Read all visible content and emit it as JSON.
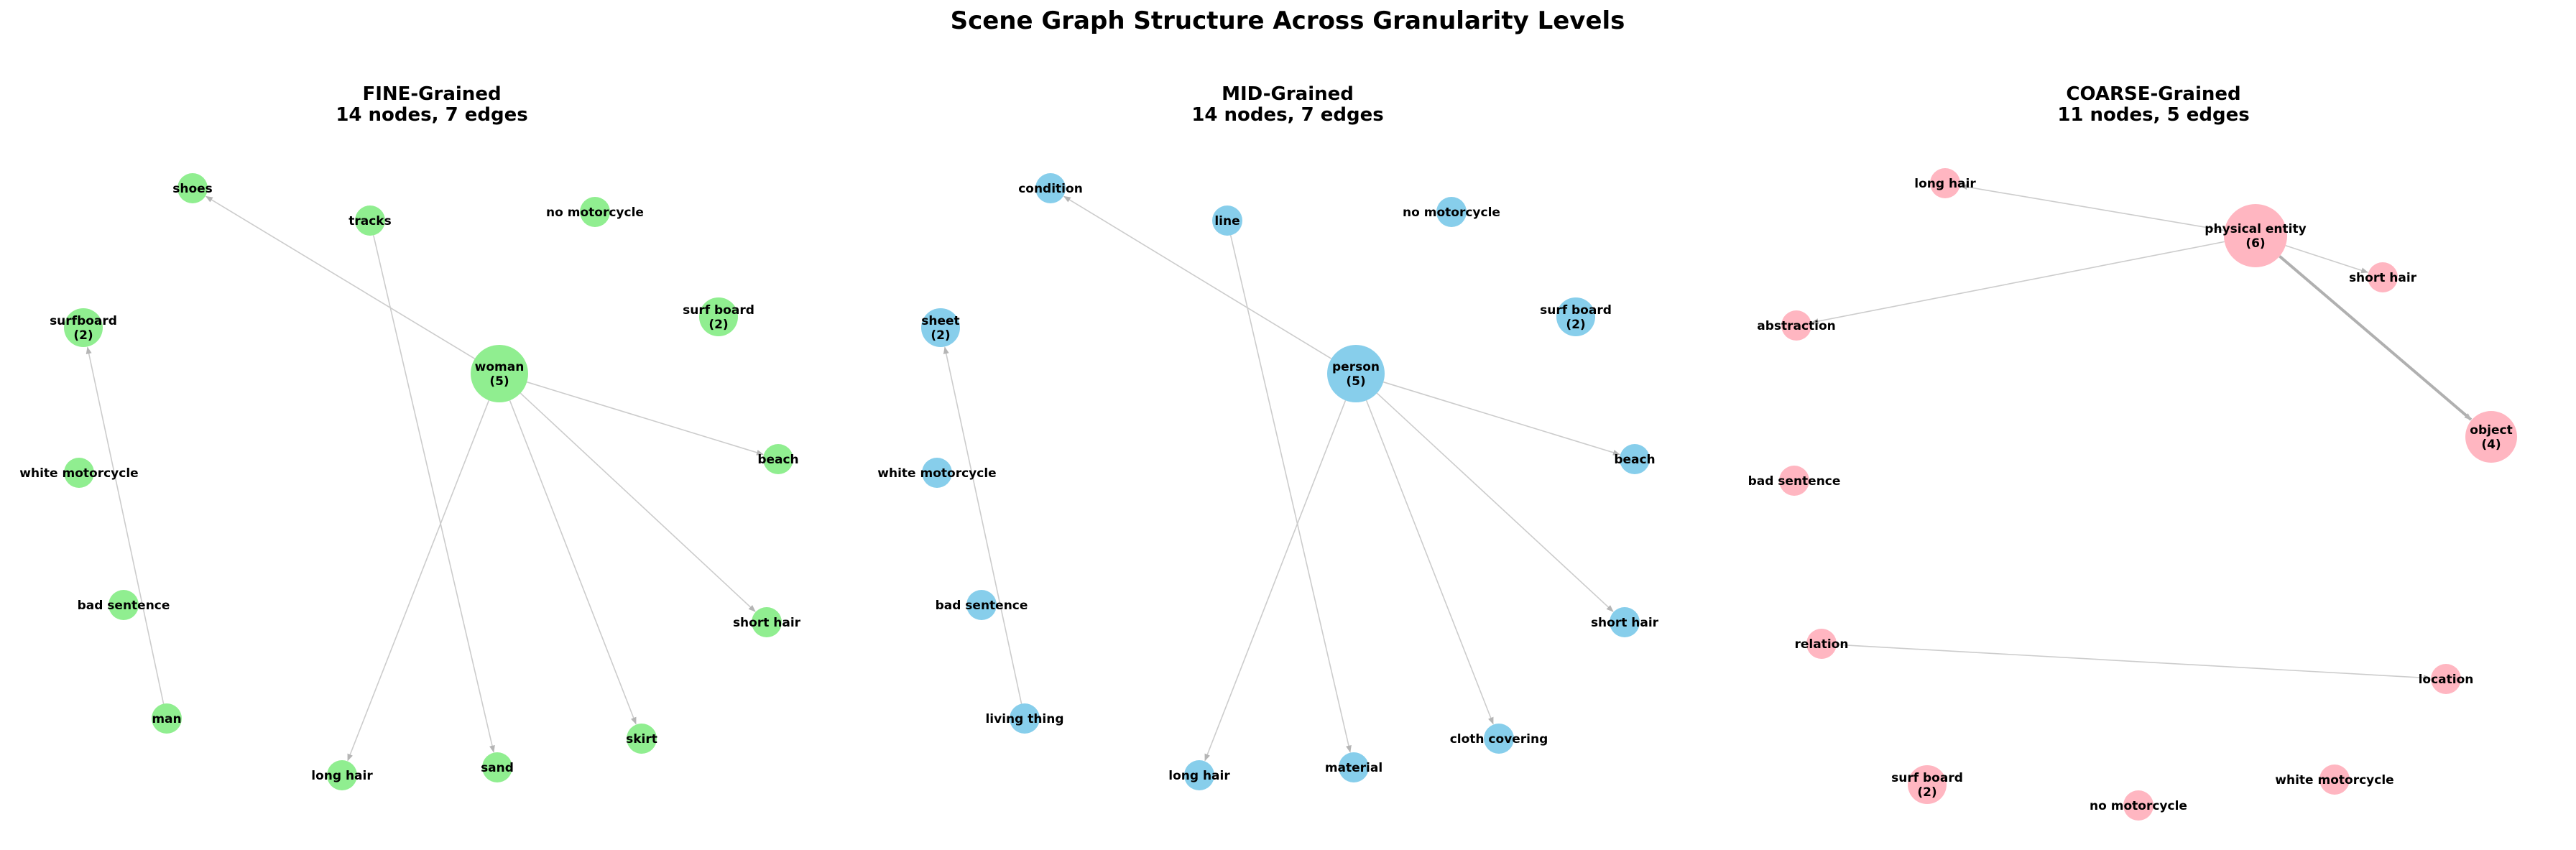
{
  "figure": {
    "title": "Scene Graph Structure Across Granularity Levels"
  },
  "panels": [
    {
      "id": "fine",
      "title_line1": "FINE-Grained",
      "title_line2": "14 nodes, 7 edges",
      "node_color": "#90ee90",
      "nodes": [
        {
          "id": "woman",
          "label": "woman",
          "count": "(5)"
        },
        {
          "id": "shoes",
          "label": "shoes"
        },
        {
          "id": "tracks",
          "label": "tracks"
        },
        {
          "id": "no_motorcycle",
          "label": "no motorcycle"
        },
        {
          "id": "surfboard",
          "label": "surfboard",
          "count": "(2)"
        },
        {
          "id": "surf_board",
          "label": "surf board",
          "count": "(2)"
        },
        {
          "id": "white_motorcycle",
          "label": "white motorcycle"
        },
        {
          "id": "beach",
          "label": "beach"
        },
        {
          "id": "bad_sentence",
          "label": "bad sentence"
        },
        {
          "id": "short_hair",
          "label": "short hair"
        },
        {
          "id": "man",
          "label": "man"
        },
        {
          "id": "skirt",
          "label": "skirt"
        },
        {
          "id": "long_hair",
          "label": "long hair"
        },
        {
          "id": "sand",
          "label": "sand"
        }
      ],
      "edges": [
        [
          "woman",
          "shoes"
        ],
        [
          "woman",
          "beach"
        ],
        [
          "woman",
          "short_hair"
        ],
        [
          "woman",
          "skirt"
        ],
        [
          "woman",
          "long_hair"
        ],
        [
          "tracks",
          "sand"
        ],
        [
          "man",
          "surfboard"
        ]
      ]
    },
    {
      "id": "mid",
      "title_line1": "MID-Grained",
      "title_line2": "14 nodes, 7 edges",
      "node_color": "#87ceeb",
      "nodes": [
        {
          "id": "person",
          "label": "person",
          "count": "(5)"
        },
        {
          "id": "condition",
          "label": "condition"
        },
        {
          "id": "line",
          "label": "line"
        },
        {
          "id": "no_motorcycle",
          "label": "no motorcycle"
        },
        {
          "id": "sheet",
          "label": "sheet",
          "count": "(2)"
        },
        {
          "id": "surf_board",
          "label": "surf board",
          "count": "(2)"
        },
        {
          "id": "white_motorcycle",
          "label": "white motorcycle"
        },
        {
          "id": "beach",
          "label": "beach"
        },
        {
          "id": "bad_sentence",
          "label": "bad sentence"
        },
        {
          "id": "short_hair",
          "label": "short hair"
        },
        {
          "id": "living_thing",
          "label": "living thing"
        },
        {
          "id": "cloth_covering",
          "label": "cloth covering"
        },
        {
          "id": "long_hair",
          "label": "long hair"
        },
        {
          "id": "material",
          "label": "material"
        }
      ],
      "edges": [
        [
          "person",
          "condition"
        ],
        [
          "person",
          "beach"
        ],
        [
          "person",
          "short_hair"
        ],
        [
          "person",
          "cloth_covering"
        ],
        [
          "person",
          "long_hair"
        ],
        [
          "line",
          "material"
        ],
        [
          "living_thing",
          "sheet"
        ]
      ]
    },
    {
      "id": "coarse",
      "title_line1": "COARSE-Grained",
      "title_line2": "11 nodes, 5 edges",
      "node_color": "#ffb6c1",
      "nodes": [
        {
          "id": "physical_entity",
          "label": "physical entity",
          "count": "(6)"
        },
        {
          "id": "long_hair",
          "label": "long hair"
        },
        {
          "id": "short_hair",
          "label": "short hair"
        },
        {
          "id": "abstraction",
          "label": "abstraction"
        },
        {
          "id": "object",
          "label": "object",
          "count": "(4)"
        },
        {
          "id": "bad_sentence",
          "label": "bad sentence"
        },
        {
          "id": "relation",
          "label": "relation"
        },
        {
          "id": "location",
          "label": "location"
        },
        {
          "id": "surf_board",
          "label": "surf board",
          "count": "(2)"
        },
        {
          "id": "white_motorcycle",
          "label": "white motorcycle"
        },
        {
          "id": "no_motorcycle",
          "label": "no motorcycle"
        }
      ],
      "edges": [
        [
          "physical_entity",
          "long_hair"
        ],
        [
          "physical_entity",
          "short_hair"
        ],
        [
          "physical_entity",
          "abstraction"
        ],
        [
          "physical_entity",
          "object"
        ],
        [
          "relation",
          "location"
        ]
      ]
    }
  ]
}
